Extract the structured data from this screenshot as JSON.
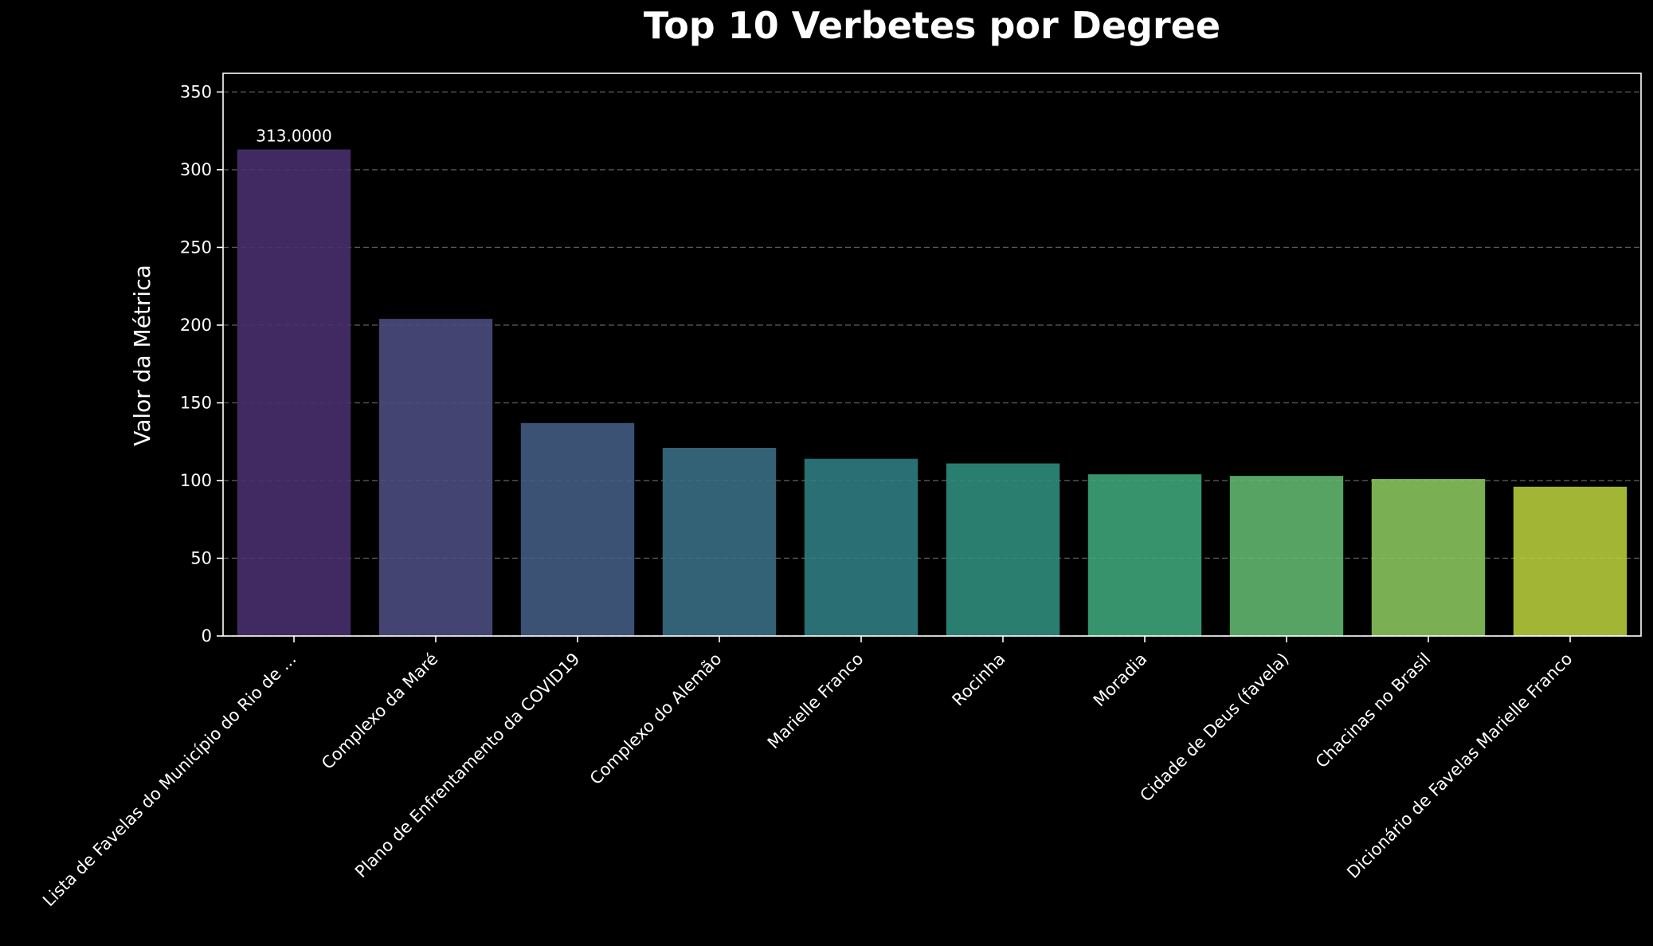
{
  "chart_data": {
    "type": "bar",
    "title": "Top 10 Verbetes por Degree",
    "xlabel": "",
    "ylabel": "Valor da Métrica",
    "categories": [
      "Lista de Favelas do Município do Rio de ...",
      "Complexo da Maré",
      "Plano de Enfrentamento da COVID19",
      "Complexo do Alemão",
      "Marielle Franco",
      "Rocinha",
      "Moradia",
      "Cidade de Deus (favela)",
      "Chacinas no Brasil",
      "Dicionário de Favelas Marielle Franco"
    ],
    "values": [
      313,
      204,
      137,
      121,
      114,
      111,
      104,
      103,
      101,
      96
    ],
    "colors": [
      "#482f6c",
      "#4a4b7d",
      "#435b82",
      "#386c83",
      "#2e7b7f",
      "#2e8c7c",
      "#3da378",
      "#5fb56e",
      "#87c35c",
      "#b5c93a"
    ],
    "data_labels": [
      "313.0000"
    ],
    "ylim": [
      0,
      362
    ],
    "yticks": [
      0,
      50,
      100,
      150,
      200,
      250,
      300,
      350
    ],
    "grid": true,
    "background_color": "#000000",
    "text_color": "#ffffff"
  }
}
